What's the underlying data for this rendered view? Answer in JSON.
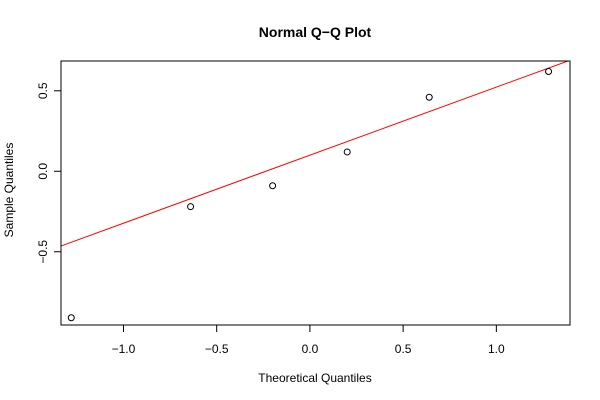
{
  "chart_data": {
    "type": "scatter",
    "title": "Normal Q−Q Plot",
    "xlabel": "Theoretical Quantiles",
    "ylabel": "Sample Quantiles",
    "xlim": [
      -1.335,
      1.395
    ],
    "ylim": [
      -0.955,
      0.685
    ],
    "x_ticks": [
      -1.0,
      -0.5,
      0.0,
      0.5,
      1.0
    ],
    "x_tick_labels": [
      "−1.0",
      "−0.5",
      "0.0",
      "0.5",
      "1.0"
    ],
    "y_ticks": [
      -0.5,
      0.0,
      0.5
    ],
    "y_tick_labels": [
      "−0.5",
      "0.0",
      "0.5"
    ],
    "grid": false,
    "points": [
      {
        "x": -1.28,
        "y": -0.91
      },
      {
        "x": -0.64,
        "y": -0.22
      },
      {
        "x": -0.2,
        "y": -0.09
      },
      {
        "x": 0.2,
        "y": 0.12
      },
      {
        "x": 0.64,
        "y": 0.46
      },
      {
        "x": 1.28,
        "y": 0.62
      }
    ],
    "reference_line": {
      "intercept": 0.1,
      "slope": 0.4227
    },
    "colors": {
      "points": "#000000",
      "line": "#ff0000",
      "axis": "#000000"
    }
  }
}
